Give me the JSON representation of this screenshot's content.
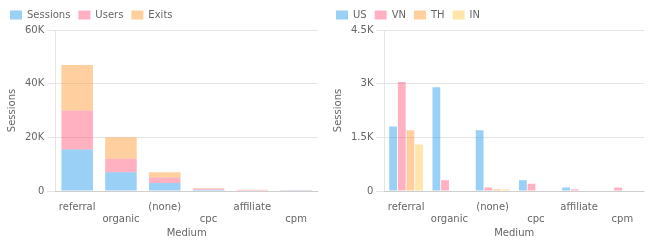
{
  "chart_data": [
    {
      "type": "bar",
      "stacked": true,
      "categories": [
        "referral",
        "organic",
        "(none)",
        "cpc",
        "affiliate",
        "cpm"
      ],
      "series": [
        {
          "name": "Sessions",
          "values": [
            15500,
            7000,
            3000,
            500,
            200,
            100
          ]
        },
        {
          "name": "Users",
          "values": [
            14500,
            5000,
            2000,
            300,
            150,
            80
          ]
        },
        {
          "name": "Exits",
          "values": [
            17000,
            8000,
            2000,
            200,
            100,
            50
          ]
        }
      ],
      "xlabel": "Medium",
      "ylabel": "Sessions",
      "ylim": [
        0,
        60000
      ],
      "yticks": [
        0,
        {
          "value": 20000,
          "label": "20K"
        },
        {
          "value": 40000,
          "label": "40K"
        },
        {
          "value": 60000,
          "label": "60K"
        }
      ],
      "grid": true,
      "legend": "upper left"
    },
    {
      "type": "bar",
      "categories": [
        "referral",
        "organic",
        "(none)",
        "cpc",
        "affiliate",
        "cpm"
      ],
      "series": [
        {
          "name": "US",
          "values": [
            1800,
            2900,
            1700,
            300,
            100,
            0
          ]
        },
        {
          "name": "VN",
          "values": [
            3050,
            300,
            100,
            200,
            50,
            100
          ]
        },
        {
          "name": "TH",
          "values": [
            1700,
            0,
            50,
            0,
            0,
            0
          ]
        },
        {
          "name": "IN",
          "values": [
            1300,
            0,
            50,
            0,
            0,
            0
          ]
        }
      ],
      "xlabel": "Medium",
      "ylabel": "Sessions",
      "ylim": [
        0,
        4500
      ],
      "yticks": [
        0,
        {
          "value": 1500,
          "label": "1.5K"
        },
        {
          "value": 3000,
          "label": "3K"
        },
        {
          "value": 4500,
          "label": "4.5K"
        }
      ],
      "grid": true,
      "legend": "upper left"
    }
  ]
}
